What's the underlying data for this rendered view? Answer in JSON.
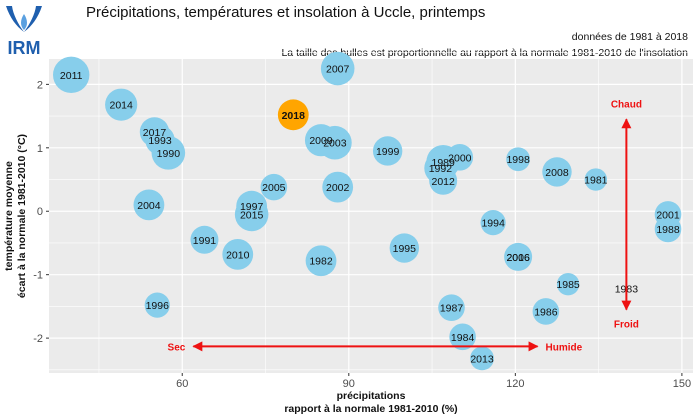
{
  "header": {
    "logo_text": "IRM",
    "title": "Précipitations, températures et insolation à Uccle, printemps",
    "subtitle_period": "données de 1981 à 2018",
    "subtitle_bubbles": "La taille des bulles est proportionnelle au rapport à la normale 1981-2010 de l'insolation"
  },
  "colors": {
    "bubble": "#87CEEB",
    "highlight": "#FFA500",
    "highlight_label": "#ff0000",
    "arrow": "#ee1111",
    "panel": "#ebebeb",
    "grid": "#ffffff"
  },
  "chart_data": {
    "type": "scatter",
    "subtype": "bubble",
    "title": "Précipitations, températures et insolation à Uccle, printemps",
    "xlabel": [
      "précipitations",
      "rapport à la normale 1981-2010 (%)"
    ],
    "ylabel": [
      "température moyenne",
      "écart à la normale 1981-2010 (°C)"
    ],
    "xlim": [
      36,
      152
    ],
    "ylim": [
      -2.55,
      2.4
    ],
    "xticks": [
      60,
      90,
      120,
      150
    ],
    "yticks": [
      -2,
      -1,
      0,
      1,
      2
    ],
    "grid": true,
    "highlight_year": "2018",
    "points": [
      {
        "label": "2011",
        "x": 40,
        "y": 2.15,
        "size": 1.3
      },
      {
        "label": "2007",
        "x": 88,
        "y": 2.25,
        "size": 1.2
      },
      {
        "label": "2014",
        "x": 49,
        "y": 1.68,
        "size": 1.15
      },
      {
        "label": "2018",
        "x": 80,
        "y": 1.52,
        "size": 1.1
      },
      {
        "label": "2017",
        "x": 55,
        "y": 1.25,
        "size": 1.05
      },
      {
        "label": "1993",
        "x": 56,
        "y": 1.12,
        "size": 1.05
      },
      {
        "label": "1990",
        "x": 57.5,
        "y": 0.92,
        "size": 1.2
      },
      {
        "label": "2009",
        "x": 85,
        "y": 1.12,
        "size": 1.15
      },
      {
        "label": "2003",
        "x": 87.5,
        "y": 1.08,
        "size": 1.2
      },
      {
        "label": "1999",
        "x": 97,
        "y": 0.95,
        "size": 1.05
      },
      {
        "label": "1989",
        "x": 107,
        "y": 0.78,
        "size": 1.2
      },
      {
        "label": "1992",
        "x": 106.5,
        "y": 0.68,
        "size": 1.15
      },
      {
        "label": "2000",
        "x": 110,
        "y": 0.85,
        "size": 0.95
      },
      {
        "label": "1998",
        "x": 120.5,
        "y": 0.82,
        "size": 0.85
      },
      {
        "label": "2008",
        "x": 127.5,
        "y": 0.62,
        "size": 1.05
      },
      {
        "label": "1981",
        "x": 134.5,
        "y": 0.5,
        "size": 0.8
      },
      {
        "label": "2012",
        "x": 107,
        "y": 0.48,
        "size": 1.0
      },
      {
        "label": "2005",
        "x": 76.5,
        "y": 0.38,
        "size": 0.95
      },
      {
        "label": "2002",
        "x": 88,
        "y": 0.38,
        "size": 1.1
      },
      {
        "label": "2004",
        "x": 54,
        "y": 0.1,
        "size": 1.1
      },
      {
        "label": "1997",
        "x": 72.5,
        "y": 0.08,
        "size": 1.1
      },
      {
        "label": "2015",
        "x": 72.5,
        "y": -0.05,
        "size": 1.2
      },
      {
        "label": "2001",
        "x": 147.5,
        "y": -0.05,
        "size": 0.95
      },
      {
        "label": "1988",
        "x": 147.5,
        "y": -0.28,
        "size": 0.95
      },
      {
        "label": "1994",
        "x": 116,
        "y": -0.18,
        "size": 0.9
      },
      {
        "label": "1991",
        "x": 64,
        "y": -0.45,
        "size": 1.0
      },
      {
        "label": "2010",
        "x": 70,
        "y": -0.68,
        "size": 1.1
      },
      {
        "label": "1995",
        "x": 100,
        "y": -0.58,
        "size": 1.05
      },
      {
        "label": "1982",
        "x": 85,
        "y": -0.78,
        "size": 1.1
      },
      {
        "label": "2016",
        "x": 120.5,
        "y": -0.72,
        "size": 1.0
      },
      {
        "label": "2006",
        "x": 120.5,
        "y": -0.72,
        "size": 0.95
      },
      {
        "label": "1985",
        "x": 129.5,
        "y": -1.15,
        "size": 0.8
      },
      {
        "label": "1983",
        "x": 140,
        "y": -1.22,
        "size": 0.0
      },
      {
        "label": "1996",
        "x": 55.5,
        "y": -1.48,
        "size": 0.9
      },
      {
        "label": "1987",
        "x": 108.5,
        "y": -1.52,
        "size": 0.95
      },
      {
        "label": "1986",
        "x": 125.5,
        "y": -1.58,
        "size": 0.95
      },
      {
        "label": "1984",
        "x": 110.5,
        "y": -1.98,
        "size": 0.95
      },
      {
        "label": "2013",
        "x": 114,
        "y": -2.32,
        "size": 0.85
      }
    ],
    "annotations": {
      "dry": "Sec",
      "wet": "Humide",
      "hot": "Chaud",
      "cold": "Froid",
      "horizontal_arrow": {
        "x_from": 62,
        "x_to": 124,
        "y": -2.13
      },
      "vertical_arrow": {
        "x": 140,
        "y_from": -1.55,
        "y_to": 1.45
      }
    }
  }
}
